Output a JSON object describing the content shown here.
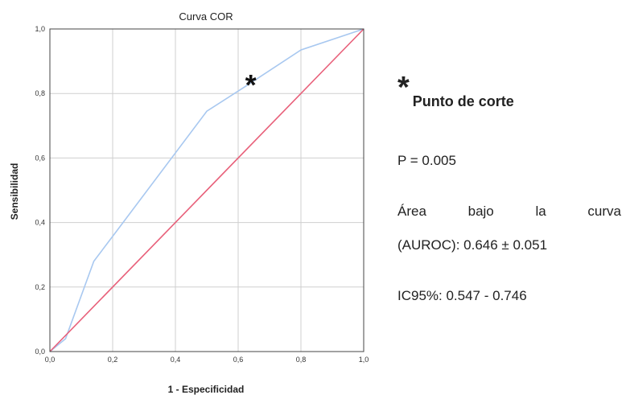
{
  "chart_data": {
    "type": "line",
    "title": "Curva COR",
    "xlabel": "1 - Especificidad",
    "ylabel": "Sensibilidad",
    "xlim": [
      0,
      1
    ],
    "ylim": [
      0,
      1
    ],
    "xticks": [
      "0,0",
      "0,2",
      "0,4",
      "0,6",
      "0,8",
      "1,0"
    ],
    "yticks": [
      "0,0",
      "0,2",
      "0,4",
      "0,6",
      "0,8",
      "1,0"
    ],
    "grid": true,
    "series": [
      {
        "color": "#a8c8f0",
        "points": [
          [
            0,
            0
          ],
          [
            0.05,
            0.04
          ],
          [
            0.14,
            0.28
          ],
          [
            0.21,
            0.37
          ],
          [
            0.5,
            0.745
          ],
          [
            0.62,
            0.82
          ],
          [
            0.8,
            0.935
          ],
          [
            1,
            1
          ]
        ]
      },
      {
        "color": "#e8607a",
        "points": [
          [
            0,
            0
          ],
          [
            1,
            1
          ]
        ]
      }
    ],
    "annotations": [
      {
        "text": "*",
        "x": 0.64,
        "y": 0.86
      }
    ]
  },
  "legend": {
    "marker": "*",
    "cutoff_label": "Punto de corte",
    "p_value": "P = 0.005",
    "auroc_words": [
      "Área",
      "bajo",
      "la",
      "curva"
    ],
    "auroc_value": "(AUROC): 0.646 ± 0.051",
    "ci": "IC95%: 0.547 - 0.746"
  }
}
